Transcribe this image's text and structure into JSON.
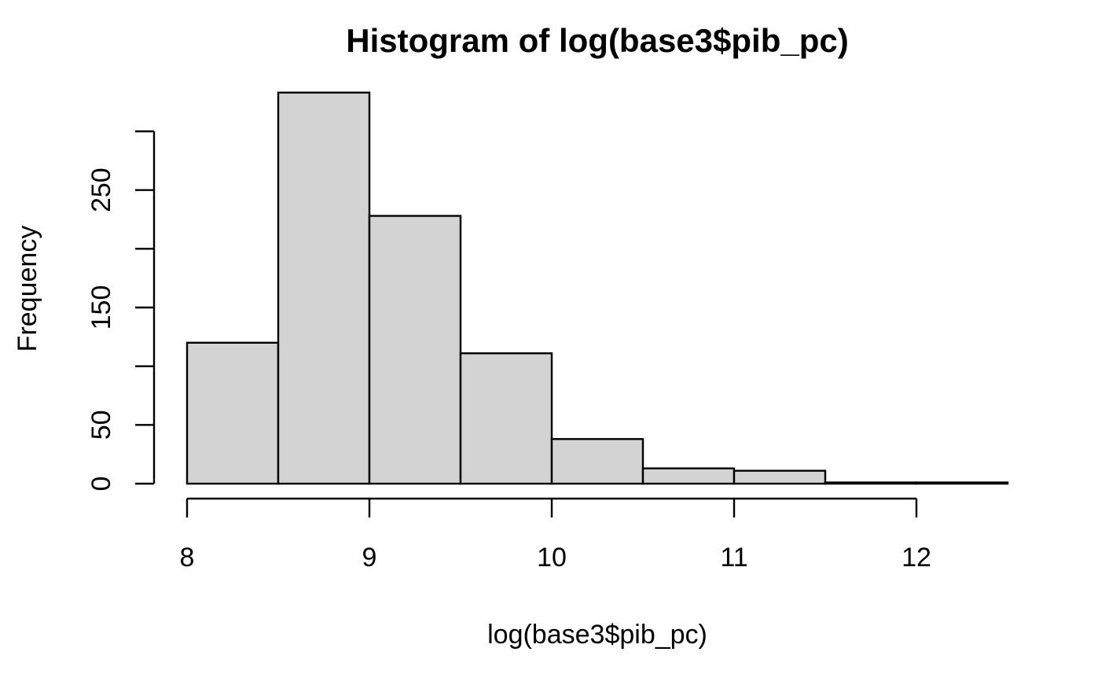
{
  "chart_data": {
    "type": "bar",
    "title": "Histogram of log(base3$pib_pc)",
    "xlabel": "log(base3$pib_pc)",
    "ylabel": "Frequency",
    "bins": [
      {
        "from": 8.0,
        "to": 8.5,
        "count": 120
      },
      {
        "from": 8.5,
        "to": 9.0,
        "count": 333
      },
      {
        "from": 9.0,
        "to": 9.5,
        "count": 228
      },
      {
        "from": 9.5,
        "to": 10.0,
        "count": 111
      },
      {
        "from": 10.0,
        "to": 10.5,
        "count": 38
      },
      {
        "from": 10.5,
        "to": 11.0,
        "count": 13
      },
      {
        "from": 11.0,
        "to": 11.5,
        "count": 11
      },
      {
        "from": 11.5,
        "to": 12.0,
        "count": 1
      },
      {
        "from": 12.0,
        "to": 12.5,
        "count": 1
      }
    ],
    "xlim": [
      8.0,
      12.5
    ],
    "ylim": [
      0,
      333
    ],
    "x_ticks": [
      8,
      9,
      10,
      11,
      12
    ],
    "x_tick_labels": [
      "8",
      "9",
      "10",
      "11",
      "12"
    ],
    "y_ticks": [
      0,
      50,
      100,
      150,
      200,
      250,
      300
    ],
    "y_tick_labels": [
      "0",
      "50",
      "",
      "150",
      "",
      "250",
      ""
    ],
    "bar_fill": "#d3d3d3",
    "bar_stroke": "#000000",
    "grid": false,
    "legend": false
  }
}
